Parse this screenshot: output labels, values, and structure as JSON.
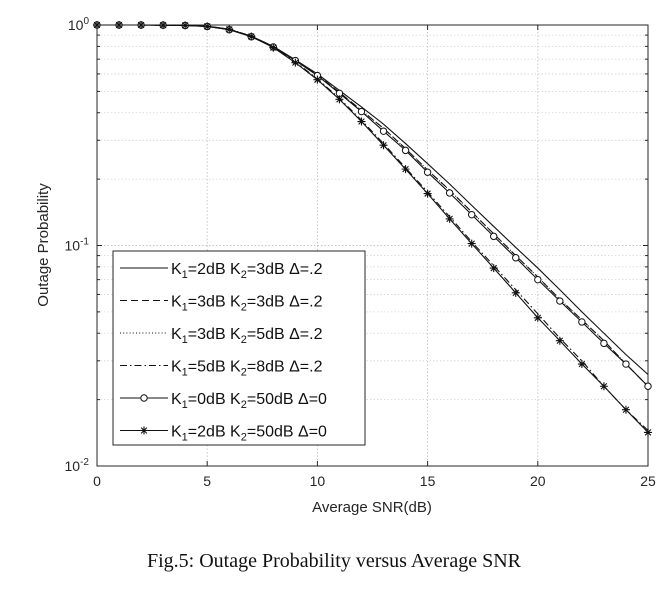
{
  "caption": "Fig.5: Outage Probability versus Average SNR",
  "chart_data": {
    "type": "line",
    "xlabel": "Average SNR(dB)",
    "ylabel": "Outage Probability",
    "xlim": [
      0,
      25
    ],
    "ylim": [
      0.01,
      1
    ],
    "yscale": "log",
    "grid": "on (major and minor, dotted)",
    "legend_position": "bottom-left",
    "x_ticks": [
      "0",
      "5",
      "10",
      "15",
      "20",
      "25"
    ],
    "y_ticks": [
      {
        "base": "10",
        "exp": "-2"
      },
      {
        "base": "10",
        "exp": "-1"
      },
      {
        "base": "10",
        "exp": "0"
      }
    ],
    "series": [
      {
        "label": {
          "k1": "2dB",
          "k2": "3dB",
          "rest": "=3dB Δ=.2"
        },
        "line": "solid",
        "marker": "none",
        "x": [
          0,
          2,
          4,
          5,
          6,
          7,
          8,
          9,
          10,
          11,
          12,
          13,
          14,
          15,
          16,
          17,
          18,
          19,
          20,
          21,
          22,
          23,
          24,
          25
        ],
        "y": [
          1.0,
          1.0,
          0.995,
          0.985,
          0.955,
          0.89,
          0.8,
          0.695,
          0.6,
          0.505,
          0.425,
          0.355,
          0.29,
          0.235,
          0.19,
          0.152,
          0.122,
          0.098,
          0.079,
          0.063,
          0.05,
          0.04,
          0.032,
          0.026
        ]
      },
      {
        "label": {
          "k1": "3dB",
          "k2": "3dB",
          "rest": "=3dB Δ=.2"
        },
        "line": "dashed",
        "marker": "none",
        "x": [
          0,
          2,
          4,
          5,
          6,
          7,
          8,
          9,
          10,
          11,
          12,
          13,
          14,
          15,
          16,
          17,
          18,
          19,
          20,
          21,
          22,
          23,
          24,
          25
        ],
        "y": [
          1.0,
          1.0,
          0.996,
          0.987,
          0.957,
          0.89,
          0.8,
          0.69,
          0.593,
          0.495,
          0.41,
          0.34,
          0.275,
          0.22,
          0.178,
          0.142,
          0.113,
          0.09,
          0.072,
          0.057,
          0.046,
          0.037,
          0.029,
          0.023
        ]
      },
      {
        "label": {
          "k1": "3dB",
          "k2": "5dB",
          "rest": "=5dB Δ=.2"
        },
        "line": "dotted",
        "marker": "none",
        "x": [
          0,
          2,
          4,
          5,
          6,
          7,
          8,
          9,
          10,
          11,
          12,
          13,
          14,
          15,
          16,
          17,
          18,
          19,
          20,
          21,
          22,
          23,
          24,
          25
        ],
        "y": [
          1.0,
          1.0,
          0.996,
          0.987,
          0.957,
          0.89,
          0.8,
          0.69,
          0.593,
          0.495,
          0.41,
          0.34,
          0.275,
          0.22,
          0.178,
          0.142,
          0.113,
          0.09,
          0.072,
          0.057,
          0.046,
          0.037,
          0.029,
          0.023
        ]
      },
      {
        "label": {
          "k1": "5dB",
          "k2": "8dB",
          "rest": "=8dB Δ=.2"
        },
        "line": "dashdot",
        "marker": "none",
        "x": [
          0,
          2,
          4,
          5,
          6,
          7,
          8,
          9,
          10,
          11,
          12,
          13,
          14,
          15,
          16,
          17,
          18,
          19,
          20,
          21,
          22,
          23,
          24,
          25
        ],
        "y": [
          1.0,
          1.0,
          0.997,
          0.988,
          0.958,
          0.89,
          0.795,
          0.68,
          0.57,
          0.465,
          0.37,
          0.29,
          0.225,
          0.175,
          0.135,
          0.104,
          0.081,
          0.063,
          0.049,
          0.038,
          0.03,
          0.023,
          0.018,
          0.0145
        ]
      },
      {
        "label": {
          "k1": "0dB",
          "k2": "50dB",
          "rest": "=50dB Δ=0"
        },
        "line": "solid",
        "marker": "circle",
        "x": [
          0,
          1,
          2,
          3,
          4,
          5,
          6,
          7,
          8,
          9,
          10,
          11,
          12,
          13,
          14,
          15,
          16,
          17,
          18,
          19,
          20,
          21,
          22,
          23,
          24,
          25
        ],
        "y": [
          1.0,
          1.0,
          1.0,
          0.999,
          0.995,
          0.985,
          0.952,
          0.885,
          0.795,
          0.69,
          0.59,
          0.49,
          0.405,
          0.33,
          0.27,
          0.215,
          0.173,
          0.138,
          0.11,
          0.088,
          0.07,
          0.056,
          0.045,
          0.036,
          0.029,
          0.023
        ]
      },
      {
        "label": {
          "k1": "2dB",
          "k2": "50dB",
          "rest": "=50dB Δ=0"
        },
        "line": "solid",
        "marker": "star",
        "x": [
          0,
          1,
          2,
          3,
          4,
          5,
          6,
          7,
          8,
          9,
          10,
          11,
          12,
          13,
          14,
          15,
          16,
          17,
          18,
          19,
          20,
          21,
          22,
          23,
          24,
          25
        ],
        "y": [
          1.0,
          1.0,
          1.0,
          0.999,
          0.996,
          0.986,
          0.955,
          0.887,
          0.79,
          0.675,
          0.565,
          0.46,
          0.365,
          0.285,
          0.222,
          0.172,
          0.132,
          0.102,
          0.079,
          0.061,
          0.047,
          0.037,
          0.029,
          0.023,
          0.018,
          0.0142
        ]
      }
    ]
  }
}
